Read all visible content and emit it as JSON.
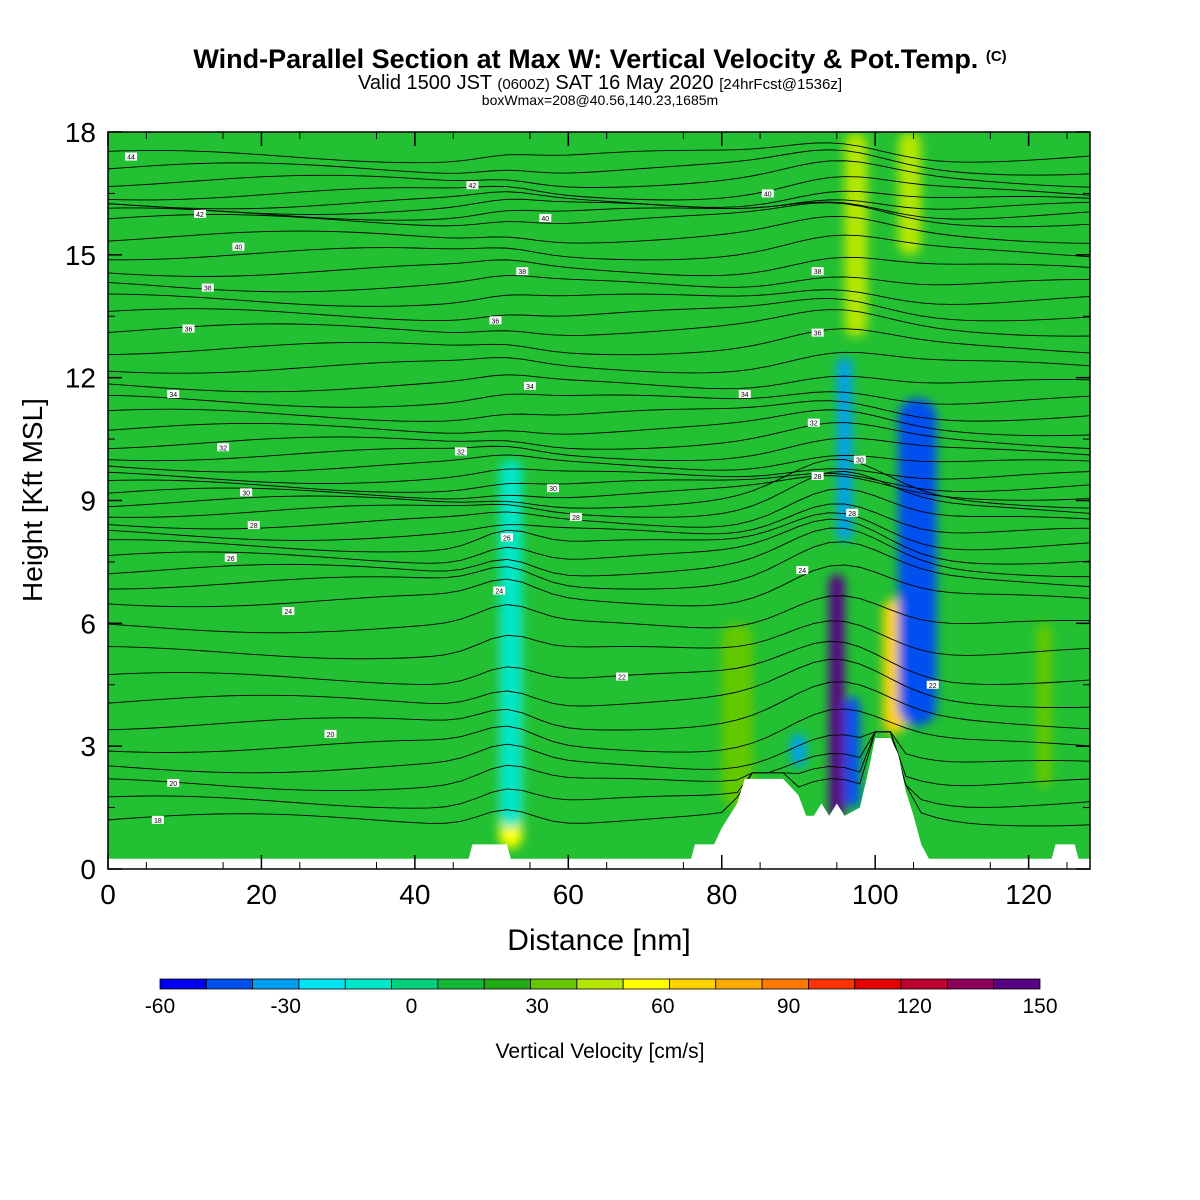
{
  "title": {
    "main": "Wind-Parallel Section at Max W: Vertical Velocity & Pot.Temp.",
    "copyright": "(C)",
    "valid_prefix": "Valid 1500 JST",
    "valid_utc": "(0600Z)",
    "valid_date": "SAT 16 May 2020",
    "forecast": "[24hrFcst@1536z]",
    "box_info": "boxWmax=208@40.56,140.23,1685m"
  },
  "colors": {
    "background_field": "#22c032",
    "palette": [
      "#0000f0",
      "#0050f0",
      "#00a0f0",
      "#00e6f0",
      "#00e6c8",
      "#00d27d",
      "#14b93c",
      "#23aa14",
      "#64c800",
      "#b4e600",
      "#ffff00",
      "#ffd200",
      "#ffaa00",
      "#ff7800",
      "#ff3200",
      "#e60000",
      "#be0032",
      "#8c005a",
      "#5a0087"
    ]
  },
  "chart_data": {
    "type": "heatmap",
    "xlabel": "Distance [nm]",
    "ylabel": "Height [Kft MSL]",
    "xlim": [
      0,
      128
    ],
    "ylim": [
      0,
      18
    ],
    "xticks": [
      "0",
      "20",
      "40",
      "60",
      "80",
      "100",
      "120"
    ],
    "yticks": [
      "0",
      "3",
      "6",
      "9",
      "12",
      "15",
      "18"
    ],
    "colorbar": {
      "label": "Vertical Velocity [cm/s]",
      "min": -60,
      "max": 150,
      "step": 10,
      "ticks": [
        "-60",
        "-30",
        "0",
        "30",
        "60",
        "90",
        "120",
        "150"
      ]
    },
    "velocity_cells": [
      {
        "x": [
          94,
          96
        ],
        "y": [
          1.2,
          7.2
        ],
        "w": 150
      },
      {
        "x": [
          101,
          104
        ],
        "y": [
          3.3,
          6.6
        ],
        "w": 50
      },
      {
        "x": [
          51,
          54
        ],
        "y": [
          0.5,
          6.5
        ],
        "w": 40
      },
      {
        "x": [
          96,
          99
        ],
        "y": [
          13,
          18
        ],
        "w": 30
      },
      {
        "x": [
          103,
          106
        ],
        "y": [
          15,
          18
        ],
        "w": 30
      },
      {
        "x": [
          80,
          84
        ],
        "y": [
          1.5,
          6
        ],
        "w": 25
      },
      {
        "x": [
          121,
          123
        ],
        "y": [
          2,
          6
        ],
        "w": 20
      },
      {
        "x": [
          96,
          98
        ],
        "y": [
          1.5,
          4.2
        ],
        "w": -50
      },
      {
        "x": [
          103,
          108
        ],
        "y": [
          3.5,
          11.5
        ],
        "w": -45
      },
      {
        "x": [
          95,
          97
        ],
        "y": [
          8,
          12.5
        ],
        "w": -40
      },
      {
        "x": [
          89,
          91
        ],
        "y": [
          2.5,
          3.3
        ],
        "w": -40
      },
      {
        "x": [
          51,
          54
        ],
        "y": [
          1,
          10
        ],
        "w": -20
      }
    ],
    "terrain": [
      {
        "x": 0,
        "h": 0.25
      },
      {
        "x": 47,
        "h": 0.25
      },
      {
        "x": 47.5,
        "h": 0.6
      },
      {
        "x": 52,
        "h": 0.6
      },
      {
        "x": 52.5,
        "h": 0.25
      },
      {
        "x": 76,
        "h": 0.25
      },
      {
        "x": 76.5,
        "h": 0.6
      },
      {
        "x": 79,
        "h": 0.6
      },
      {
        "x": 80,
        "h": 1.0
      },
      {
        "x": 82,
        "h": 1.6
      },
      {
        "x": 83,
        "h": 2.2
      },
      {
        "x": 88,
        "h": 2.2
      },
      {
        "x": 90,
        "h": 1.8
      },
      {
        "x": 91,
        "h": 1.3
      },
      {
        "x": 92,
        "h": 1.3
      },
      {
        "x": 93,
        "h": 1.6
      },
      {
        "x": 94,
        "h": 1.3
      },
      {
        "x": 95,
        "h": 1.6
      },
      {
        "x": 96,
        "h": 1.3
      },
      {
        "x": 98,
        "h": 1.5
      },
      {
        "x": 99,
        "h": 2.3
      },
      {
        "x": 100,
        "h": 3.2
      },
      {
        "x": 102,
        "h": 3.2
      },
      {
        "x": 103,
        "h": 2.8
      },
      {
        "x": 104,
        "h": 1.9
      },
      {
        "x": 105,
        "h": 1.3
      },
      {
        "x": 106,
        "h": 0.6
      },
      {
        "x": 107,
        "h": 0.25
      },
      {
        "x": 123,
        "h": 0.25
      },
      {
        "x": 123.5,
        "h": 0.6
      },
      {
        "x": 126,
        "h": 0.6
      },
      {
        "x": 126.5,
        "h": 0.25
      },
      {
        "x": 128,
        "h": 0.25
      }
    ],
    "theta_contour_labels": [
      {
        "text": "44",
        "x": 3,
        "y": 17.4
      },
      {
        "text": "42",
        "x": 47.5,
        "y": 16.7
      },
      {
        "text": "42",
        "x": 12,
        "y": 16.0
      },
      {
        "text": "40",
        "x": 57,
        "y": 15.9
      },
      {
        "text": "40",
        "x": 86,
        "y": 16.5
      },
      {
        "text": "40",
        "x": 17,
        "y": 15.2
      },
      {
        "text": "38",
        "x": 54,
        "y": 14.6
      },
      {
        "text": "38",
        "x": 92.5,
        "y": 14.6
      },
      {
        "text": "38",
        "x": 13,
        "y": 14.2
      },
      {
        "text": "36",
        "x": 10.5,
        "y": 13.2
      },
      {
        "text": "36",
        "x": 50.5,
        "y": 13.4
      },
      {
        "text": "36",
        "x": 92.5,
        "y": 13.1
      },
      {
        "text": "34",
        "x": 8.5,
        "y": 11.6
      },
      {
        "text": "34",
        "x": 55,
        "y": 11.8
      },
      {
        "text": "34",
        "x": 83,
        "y": 11.6
      },
      {
        "text": "32",
        "x": 15,
        "y": 10.3
      },
      {
        "text": "32",
        "x": 46,
        "y": 10.2
      },
      {
        "text": "32",
        "x": 92,
        "y": 10.9
      },
      {
        "text": "30",
        "x": 18,
        "y": 9.2
      },
      {
        "text": "30",
        "x": 58,
        "y": 9.3
      },
      {
        "text": "30",
        "x": 98,
        "y": 10.0
      },
      {
        "text": "28",
        "x": 19,
        "y": 8.4
      },
      {
        "text": "28",
        "x": 61,
        "y": 8.6
      },
      {
        "text": "28",
        "x": 92.5,
        "y": 9.6
      },
      {
        "text": "28",
        "x": 97,
        "y": 8.7
      },
      {
        "text": "26",
        "x": 16,
        "y": 7.6
      },
      {
        "text": "26",
        "x": 52,
        "y": 8.1
      },
      {
        "text": "24",
        "x": 23.5,
        "y": 6.3
      },
      {
        "text": "24",
        "x": 51,
        "y": 6.8
      },
      {
        "text": "24",
        "x": 90.5,
        "y": 7.3
      },
      {
        "text": "22",
        "x": 67,
        "y": 4.7
      },
      {
        "text": "22",
        "x": 107.5,
        "y": 4.5
      },
      {
        "text": "20",
        "x": 29,
        "y": 3.3
      },
      {
        "text": "20",
        "x": 8.5,
        "y": 2.1
      },
      {
        "text": "18",
        "x": 6.5,
        "y": 1.2
      }
    ]
  }
}
